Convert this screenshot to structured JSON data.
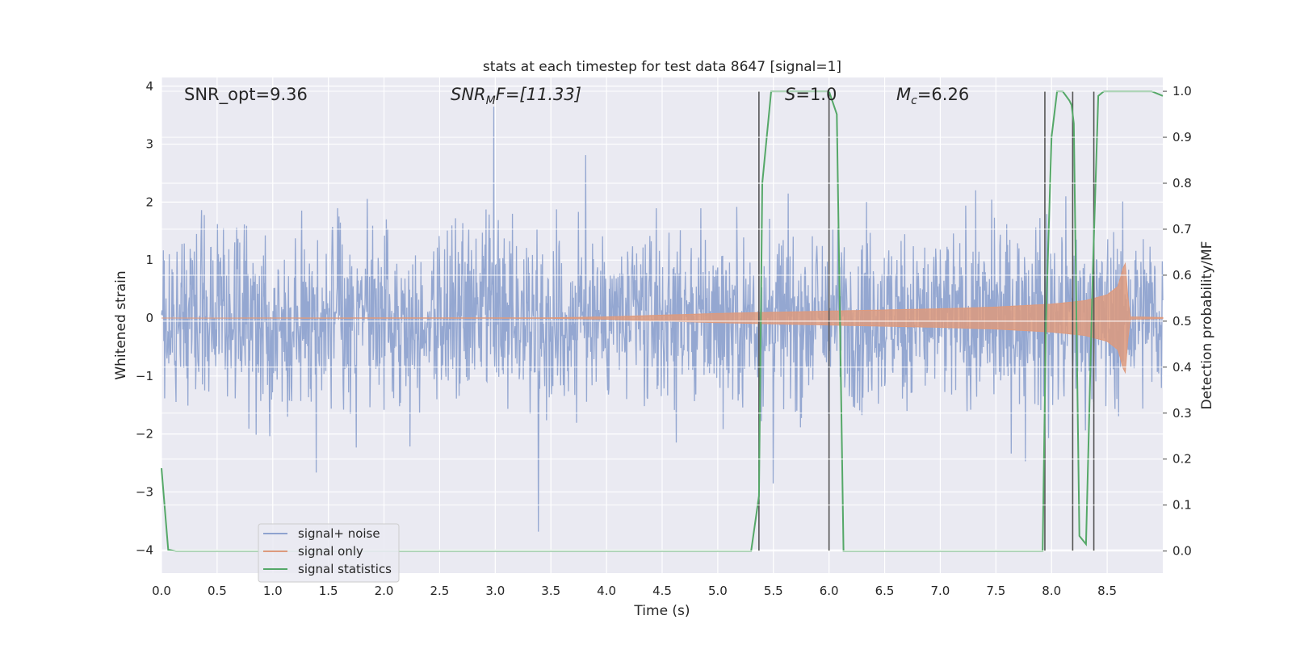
{
  "chart_data": {
    "type": "line",
    "title": "stats at each timestep for test data 8647 [signal=1]",
    "xlabel": "Time (s)",
    "ylabel": "Whitened strain",
    "ylabel_right": "Detection probability/MF",
    "xlim": [
      0.0,
      9.0
    ],
    "ylim": [
      -4.4,
      4.15
    ],
    "ylim_right": [
      -0.048,
      1.03
    ],
    "xticks": [
      "0.0",
      "0.5",
      "1.0",
      "1.5",
      "2.0",
      "2.5",
      "3.0",
      "3.5",
      "4.0",
      "4.5",
      "5.0",
      "5.5",
      "6.0",
      "6.5",
      "7.0",
      "7.5",
      "8.0",
      "8.5"
    ],
    "yticks": [
      "4",
      "3",
      "2",
      "1",
      "0",
      "−1",
      "−2",
      "−3",
      "−4"
    ],
    "yticks_right": [
      "1.0",
      "0.9",
      "0.8",
      "0.7",
      "0.6",
      "0.5",
      "0.4",
      "0.3",
      "0.2",
      "0.1",
      "0.0"
    ],
    "grid": true,
    "legend_position": "lower-left",
    "annotations": {
      "snr_opt": "SNR_opt=9.36",
      "snr_mf_main": "SNR",
      "snr_mf_sub": "M",
      "snr_mf_rest": "F=[11.33]",
      "s_main": "S",
      "s_rest": "=1.0",
      "mc_main": "M",
      "mc_sub": "c",
      "mc_rest": "=6.26"
    },
    "series": [
      {
        "name": "signal+ noise",
        "color": "#8fa3cf",
        "description_values": {
          "typical_amplitude": 1.5,
          "max": 3.8,
          "min": -4.0
        }
      },
      {
        "name": "signal only",
        "color": "#dd9a7e",
        "envelope": {
          "t": [
            0.0,
            3.5,
            4.0,
            4.5,
            5.0,
            5.5,
            6.0,
            6.5,
            7.0,
            7.5,
            8.0,
            8.3,
            8.5,
            8.6,
            8.66,
            8.7,
            9.0
          ],
          "amp": [
            0.0,
            0.005,
            0.02,
            0.05,
            0.08,
            0.1,
            0.12,
            0.14,
            0.16,
            0.19,
            0.24,
            0.3,
            0.4,
            0.55,
            1.0,
            0.02,
            0.01
          ]
        }
      },
      {
        "name": "signal statistics",
        "color": "#55a868",
        "x": [
          0.0,
          0.06,
          0.13,
          5.3,
          5.37,
          5.4,
          5.48,
          6.0,
          6.07,
          6.13,
          7.92,
          7.95,
          8.0,
          8.05,
          8.1,
          8.16,
          8.18,
          8.2,
          8.25,
          8.31,
          8.37,
          8.42,
          8.47,
          8.9,
          9.0
        ],
        "y": [
          0.18,
          0.003,
          0.0,
          0.0,
          0.12,
          0.8,
          1.0,
          1.0,
          0.95,
          0.0,
          0.0,
          0.5,
          0.9,
          1.0,
          1.0,
          0.98,
          0.97,
          0.93,
          0.033,
          0.015,
          0.6,
          0.99,
          1.0,
          1.0,
          0.99
        ]
      }
    ],
    "vertical_lines_x": [
      5.37,
      6.0,
      7.94,
      8.19,
      8.38
    ]
  }
}
